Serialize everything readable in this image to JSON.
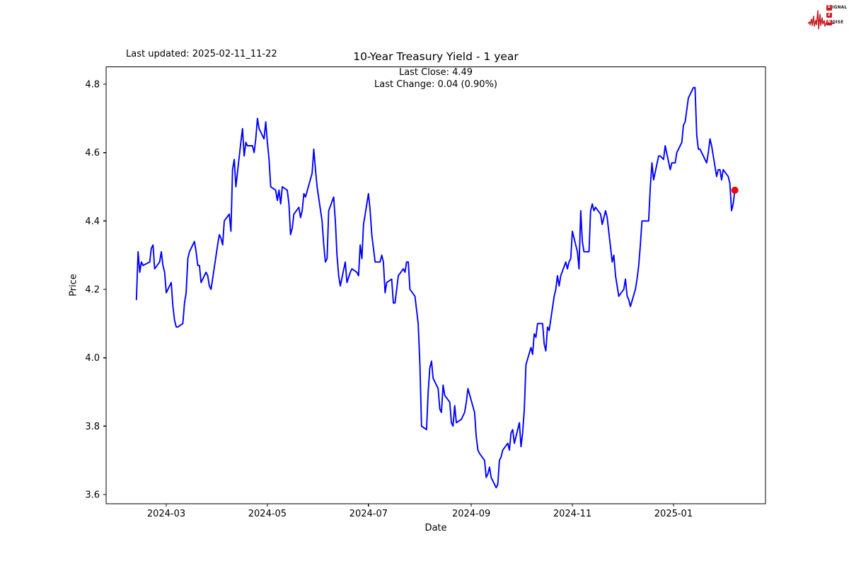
{
  "header": {
    "last_updated": "Last updated: 2025-02-11_11-22"
  },
  "logo": {
    "color": "#c41e25",
    "rows": [
      {
        "badge": "S",
        "rest": "IGNAL"
      },
      {
        "badge": "2",
        "rest": ""
      },
      {
        "badge": "N",
        "rest": "OISE"
      }
    ]
  },
  "chart_data": {
    "type": "line",
    "title": "10-Year Treasury Yield - 1 year",
    "subtitle": [
      "Last Close: 4.49",
      "Last Change: 0.04 (0.90%)"
    ],
    "xlabel": "Date",
    "ylabel": "Price",
    "last_close": 4.49,
    "last_change_abs": 0.04,
    "last_change_pct": "0.90%",
    "line_color": "#0000ff",
    "marker_color": "#ff0000",
    "axis_color": "#000000",
    "grid": false,
    "legend": null,
    "ylim": [
      3.57,
      4.85
    ],
    "y_ticks": [
      3.6,
      3.8,
      4.0,
      4.2,
      4.4,
      4.6,
      4.8
    ],
    "x_ticks": [
      {
        "label": "2024-03",
        "date": "2024-03-01"
      },
      {
        "label": "2024-05",
        "date": "2024-05-01"
      },
      {
        "label": "2024-07",
        "date": "2024-07-01"
      },
      {
        "label": "2024-09",
        "date": "2024-09-01"
      },
      {
        "label": "2024-11",
        "date": "2024-11-01"
      },
      {
        "label": "2025-01",
        "date": "2025-01-01"
      }
    ],
    "points": [
      [
        "2024-02-12",
        4.17
      ],
      [
        "2024-02-13",
        4.31
      ],
      [
        "2024-02-14",
        4.25
      ],
      [
        "2024-02-15",
        4.28
      ],
      [
        "2024-02-16",
        4.27
      ],
      [
        "2024-02-20",
        4.28
      ],
      [
        "2024-02-21",
        4.32
      ],
      [
        "2024-02-22",
        4.33
      ],
      [
        "2024-02-23",
        4.26
      ],
      [
        "2024-02-26",
        4.28
      ],
      [
        "2024-02-27",
        4.31
      ],
      [
        "2024-02-28",
        4.27
      ],
      [
        "2024-02-29",
        4.25
      ],
      [
        "2024-03-01",
        4.19
      ],
      [
        "2024-03-04",
        4.22
      ],
      [
        "2024-03-05",
        4.15
      ],
      [
        "2024-03-06",
        4.11
      ],
      [
        "2024-03-07",
        4.09
      ],
      [
        "2024-03-08",
        4.09
      ],
      [
        "2024-03-11",
        4.1
      ],
      [
        "2024-03-12",
        4.16
      ],
      [
        "2024-03-13",
        4.19
      ],
      [
        "2024-03-14",
        4.29
      ],
      [
        "2024-03-15",
        4.31
      ],
      [
        "2024-03-18",
        4.34
      ],
      [
        "2024-03-19",
        4.31
      ],
      [
        "2024-03-20",
        4.27
      ],
      [
        "2024-03-21",
        4.27
      ],
      [
        "2024-03-22",
        4.22
      ],
      [
        "2024-03-25",
        4.25
      ],
      [
        "2024-03-26",
        4.24
      ],
      [
        "2024-03-27",
        4.21
      ],
      [
        "2024-03-28",
        4.2
      ],
      [
        "2024-04-01",
        4.33
      ],
      [
        "2024-04-02",
        4.36
      ],
      [
        "2024-04-03",
        4.35
      ],
      [
        "2024-04-04",
        4.33
      ],
      [
        "2024-04-05",
        4.4
      ],
      [
        "2024-04-08",
        4.42
      ],
      [
        "2024-04-09",
        4.37
      ],
      [
        "2024-04-10",
        4.55
      ],
      [
        "2024-04-11",
        4.58
      ],
      [
        "2024-04-12",
        4.5
      ],
      [
        "2024-04-15",
        4.63
      ],
      [
        "2024-04-16",
        4.67
      ],
      [
        "2024-04-17",
        4.59
      ],
      [
        "2024-04-18",
        4.63
      ],
      [
        "2024-04-19",
        4.62
      ],
      [
        "2024-04-22",
        4.62
      ],
      [
        "2024-04-23",
        4.6
      ],
      [
        "2024-04-24",
        4.64
      ],
      [
        "2024-04-25",
        4.7
      ],
      [
        "2024-04-26",
        4.67
      ],
      [
        "2024-04-29",
        4.64
      ],
      [
        "2024-04-30",
        4.69
      ],
      [
        "2024-05-01",
        4.63
      ],
      [
        "2024-05-02",
        4.58
      ],
      [
        "2024-05-03",
        4.5
      ],
      [
        "2024-05-06",
        4.49
      ],
      [
        "2024-05-07",
        4.46
      ],
      [
        "2024-05-08",
        4.49
      ],
      [
        "2024-05-09",
        4.45
      ],
      [
        "2024-05-10",
        4.5
      ],
      [
        "2024-05-13",
        4.49
      ],
      [
        "2024-05-14",
        4.45
      ],
      [
        "2024-05-15",
        4.36
      ],
      [
        "2024-05-16",
        4.38
      ],
      [
        "2024-05-17",
        4.42
      ],
      [
        "2024-05-20",
        4.44
      ],
      [
        "2024-05-21",
        4.41
      ],
      [
        "2024-05-22",
        4.43
      ],
      [
        "2024-05-23",
        4.48
      ],
      [
        "2024-05-24",
        4.47
      ],
      [
        "2024-05-28",
        4.54
      ],
      [
        "2024-05-29",
        4.61
      ],
      [
        "2024-05-30",
        4.55
      ],
      [
        "2024-05-31",
        4.5
      ],
      [
        "2024-06-03",
        4.4
      ],
      [
        "2024-06-04",
        4.33
      ],
      [
        "2024-06-05",
        4.28
      ],
      [
        "2024-06-06",
        4.29
      ],
      [
        "2024-06-07",
        4.43
      ],
      [
        "2024-06-10",
        4.47
      ],
      [
        "2024-06-11",
        4.4
      ],
      [
        "2024-06-12",
        4.3
      ],
      [
        "2024-06-13",
        4.24
      ],
      [
        "2024-06-14",
        4.21
      ],
      [
        "2024-06-17",
        4.28
      ],
      [
        "2024-06-18",
        4.22
      ],
      [
        "2024-06-20",
        4.25
      ],
      [
        "2024-06-21",
        4.26
      ],
      [
        "2024-06-24",
        4.25
      ],
      [
        "2024-06-25",
        4.24
      ],
      [
        "2024-06-26",
        4.33
      ],
      [
        "2024-06-27",
        4.29
      ],
      [
        "2024-06-28",
        4.39
      ],
      [
        "2024-07-01",
        4.48
      ],
      [
        "2024-07-02",
        4.43
      ],
      [
        "2024-07-03",
        4.36
      ],
      [
        "2024-07-05",
        4.28
      ],
      [
        "2024-07-08",
        4.28
      ],
      [
        "2024-07-09",
        4.3
      ],
      [
        "2024-07-10",
        4.28
      ],
      [
        "2024-07-11",
        4.19
      ],
      [
        "2024-07-12",
        4.22
      ],
      [
        "2024-07-15",
        4.23
      ],
      [
        "2024-07-16",
        4.16
      ],
      [
        "2024-07-17",
        4.16
      ],
      [
        "2024-07-18",
        4.2
      ],
      [
        "2024-07-19",
        4.24
      ],
      [
        "2024-07-22",
        4.26
      ],
      [
        "2024-07-23",
        4.25
      ],
      [
        "2024-07-24",
        4.28
      ],
      [
        "2024-07-25",
        4.28
      ],
      [
        "2024-07-26",
        4.2
      ],
      [
        "2024-07-29",
        4.18
      ],
      [
        "2024-07-30",
        4.14
      ],
      [
        "2024-07-31",
        4.1
      ],
      [
        "2024-08-01",
        3.98
      ],
      [
        "2024-08-02",
        3.8
      ],
      [
        "2024-08-05",
        3.79
      ],
      [
        "2024-08-06",
        3.9
      ],
      [
        "2024-08-07",
        3.97
      ],
      [
        "2024-08-08",
        3.99
      ],
      [
        "2024-08-09",
        3.94
      ],
      [
        "2024-08-12",
        3.91
      ],
      [
        "2024-08-13",
        3.85
      ],
      [
        "2024-08-14",
        3.84
      ],
      [
        "2024-08-15",
        3.92
      ],
      [
        "2024-08-16",
        3.89
      ],
      [
        "2024-08-19",
        3.87
      ],
      [
        "2024-08-20",
        3.81
      ],
      [
        "2024-08-21",
        3.8
      ],
      [
        "2024-08-22",
        3.86
      ],
      [
        "2024-08-23",
        3.81
      ],
      [
        "2024-08-26",
        3.82
      ],
      [
        "2024-08-27",
        3.83
      ],
      [
        "2024-08-28",
        3.84
      ],
      [
        "2024-08-29",
        3.87
      ],
      [
        "2024-08-30",
        3.91
      ],
      [
        "2024-09-03",
        3.84
      ],
      [
        "2024-09-04",
        3.77
      ],
      [
        "2024-09-05",
        3.73
      ],
      [
        "2024-09-06",
        3.72
      ],
      [
        "2024-09-09",
        3.7
      ],
      [
        "2024-09-10",
        3.65
      ],
      [
        "2024-09-11",
        3.66
      ],
      [
        "2024-09-12",
        3.68
      ],
      [
        "2024-09-13",
        3.65
      ],
      [
        "2024-09-16",
        3.62
      ],
      [
        "2024-09-17",
        3.63
      ],
      [
        "2024-09-18",
        3.7
      ],
      [
        "2024-09-19",
        3.71
      ],
      [
        "2024-09-20",
        3.73
      ],
      [
        "2024-09-23",
        3.75
      ],
      [
        "2024-09-24",
        3.73
      ],
      [
        "2024-09-25",
        3.78
      ],
      [
        "2024-09-26",
        3.79
      ],
      [
        "2024-09-27",
        3.75
      ],
      [
        "2024-09-30",
        3.81
      ],
      [
        "2024-10-01",
        3.74
      ],
      [
        "2024-10-02",
        3.78
      ],
      [
        "2024-10-03",
        3.85
      ],
      [
        "2024-10-04",
        3.98
      ],
      [
        "2024-10-07",
        4.03
      ],
      [
        "2024-10-08",
        4.01
      ],
      [
        "2024-10-09",
        4.07
      ],
      [
        "2024-10-10",
        4.06
      ],
      [
        "2024-10-11",
        4.1
      ],
      [
        "2024-10-14",
        4.1
      ],
      [
        "2024-10-15",
        4.04
      ],
      [
        "2024-10-16",
        4.02
      ],
      [
        "2024-10-17",
        4.09
      ],
      [
        "2024-10-18",
        4.08
      ],
      [
        "2024-10-21",
        4.18
      ],
      [
        "2024-10-22",
        4.2
      ],
      [
        "2024-10-23",
        4.24
      ],
      [
        "2024-10-24",
        4.21
      ],
      [
        "2024-10-25",
        4.24
      ],
      [
        "2024-10-28",
        4.28
      ],
      [
        "2024-10-29",
        4.26
      ],
      [
        "2024-10-30",
        4.28
      ],
      [
        "2024-10-31",
        4.29
      ],
      [
        "2024-11-01",
        4.37
      ],
      [
        "2024-11-04",
        4.31
      ],
      [
        "2024-11-05",
        4.26
      ],
      [
        "2024-11-06",
        4.43
      ],
      [
        "2024-11-07",
        4.34
      ],
      [
        "2024-11-08",
        4.31
      ],
      [
        "2024-11-11",
        4.31
      ],
      [
        "2024-11-12",
        4.43
      ],
      [
        "2024-11-13",
        4.45
      ],
      [
        "2024-11-14",
        4.43
      ],
      [
        "2024-11-15",
        4.44
      ],
      [
        "2024-11-18",
        4.42
      ],
      [
        "2024-11-19",
        4.39
      ],
      [
        "2024-11-20",
        4.41
      ],
      [
        "2024-11-21",
        4.43
      ],
      [
        "2024-11-22",
        4.41
      ],
      [
        "2024-11-25",
        4.28
      ],
      [
        "2024-11-26",
        4.3
      ],
      [
        "2024-11-27",
        4.24
      ],
      [
        "2024-11-29",
        4.18
      ],
      [
        "2024-12-02",
        4.2
      ],
      [
        "2024-12-03",
        4.23
      ],
      [
        "2024-12-04",
        4.18
      ],
      [
        "2024-12-05",
        4.17
      ],
      [
        "2024-12-06",
        4.15
      ],
      [
        "2024-12-09",
        4.2
      ],
      [
        "2024-12-10",
        4.23
      ],
      [
        "2024-12-11",
        4.27
      ],
      [
        "2024-12-12",
        4.33
      ],
      [
        "2024-12-13",
        4.4
      ],
      [
        "2024-12-16",
        4.4
      ],
      [
        "2024-12-17",
        4.4
      ],
      [
        "2024-12-18",
        4.5
      ],
      [
        "2024-12-19",
        4.57
      ],
      [
        "2024-12-20",
        4.52
      ],
      [
        "2024-12-23",
        4.59
      ],
      [
        "2024-12-24",
        4.59
      ],
      [
        "2024-12-26",
        4.58
      ],
      [
        "2024-12-27",
        4.62
      ],
      [
        "2024-12-30",
        4.55
      ],
      [
        "2024-12-31",
        4.57
      ],
      [
        "2025-01-02",
        4.57
      ],
      [
        "2025-01-03",
        4.6
      ],
      [
        "2025-01-06",
        4.63
      ],
      [
        "2025-01-07",
        4.68
      ],
      [
        "2025-01-08",
        4.69
      ],
      [
        "2025-01-10",
        4.76
      ],
      [
        "2025-01-13",
        4.79
      ],
      [
        "2025-01-14",
        4.79
      ],
      [
        "2025-01-15",
        4.65
      ],
      [
        "2025-01-16",
        4.61
      ],
      [
        "2025-01-17",
        4.61
      ],
      [
        "2025-01-21",
        4.57
      ],
      [
        "2025-01-22",
        4.6
      ],
      [
        "2025-01-23",
        4.64
      ],
      [
        "2025-01-24",
        4.62
      ],
      [
        "2025-01-27",
        4.53
      ],
      [
        "2025-01-28",
        4.55
      ],
      [
        "2025-01-29",
        4.55
      ],
      [
        "2025-01-30",
        4.52
      ],
      [
        "2025-01-31",
        4.55
      ],
      [
        "2025-02-03",
        4.53
      ],
      [
        "2025-02-04",
        4.51
      ],
      [
        "2025-02-05",
        4.43
      ],
      [
        "2025-02-06",
        4.45
      ],
      [
        "2025-02-07",
        4.49
      ]
    ]
  }
}
